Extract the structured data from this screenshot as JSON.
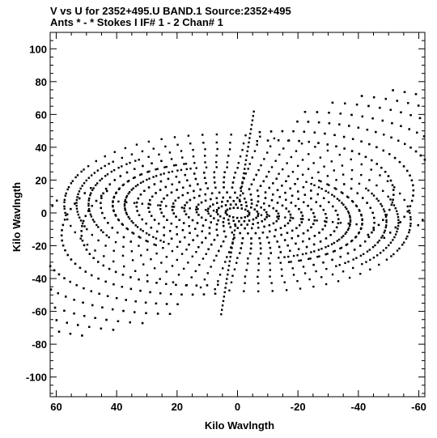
{
  "chart_data": {
    "type": "scatter",
    "title": "V vs U for 2352+495.U BAND.1   Source:2352+495",
    "subtitle": "Ants * - *     Stokes I   IF# 1 - 2   Chan# 1",
    "xlabel": "Kilo Wavlngth",
    "ylabel": "Kilo Wavlngth",
    "xlim": [
      62,
      -62
    ],
    "ylim": [
      -112,
      110
    ],
    "x_reversed": true,
    "x_ticks": [
      60,
      40,
      20,
      0,
      -20,
      -40,
      -60
    ],
    "y_ticks": [
      100,
      80,
      60,
      40,
      20,
      0,
      -20,
      -40,
      -60,
      -80,
      -100
    ],
    "x_tick_labels": [
      "60",
      "40",
      "20",
      "0",
      "-20",
      "-40",
      "-60"
    ],
    "y_tick_labels": [
      "100",
      "80",
      "60",
      "40",
      "20",
      "0",
      "-20",
      "-40",
      "-60",
      "-80",
      "-100"
    ],
    "grid": false,
    "legend": "none",
    "marker_color": "#000000",
    "tracks": [
      {
        "a": 4,
        "b": 3,
        "phi": 15,
        "t0": 0,
        "t1": 360,
        "n": 18
      },
      {
        "a": 7,
        "b": 5,
        "phi": 15,
        "t0": 0,
        "t1": 360,
        "n": 24
      },
      {
        "a": 10,
        "b": 7,
        "phi": 15,
        "t0": 0,
        "t1": 360,
        "n": 30
      },
      {
        "a": 14,
        "b": 9,
        "phi": 15,
        "t0": 0,
        "t1": 360,
        "n": 36
      },
      {
        "a": 18,
        "b": 12,
        "phi": 15,
        "t0": 0,
        "t1": 360,
        "n": 42
      },
      {
        "a": 22,
        "b": 15,
        "phi": 15,
        "t0": 0,
        "t1": 360,
        "n": 48
      },
      {
        "a": 26,
        "b": 18,
        "phi": 15,
        "t0": 0,
        "t1": 360,
        "n": 52
      },
      {
        "a": 30,
        "b": 21,
        "phi": 15,
        "t0": 0,
        "t1": 360,
        "n": 56
      },
      {
        "a": 34,
        "b": 24,
        "phi": 15,
        "t0": 0,
        "t1": 360,
        "n": 60
      },
      {
        "a": 38,
        "b": 27,
        "phi": 15,
        "t0": -60,
        "t1": 240,
        "n": 56
      },
      {
        "a": 42,
        "b": 30,
        "phi": 15,
        "t0": -60,
        "t1": 240,
        "n": 58
      },
      {
        "a": 46,
        "b": 34,
        "phi": 15,
        "t0": -50,
        "t1": 230,
        "n": 56
      },
      {
        "a": 50,
        "b": 38,
        "phi": 15,
        "t0": -40,
        "t1": 220,
        "n": 54
      },
      {
        "a": 54,
        "b": 42,
        "phi": 15,
        "t0": -30,
        "t1": 210,
        "n": 50
      },
      {
        "a": 58,
        "b": 47,
        "phi": 15,
        "t0": -20,
        "t1": 200,
        "n": 46
      },
      {
        "a": 40,
        "b": 55,
        "phi": 60,
        "t0": 30,
        "t1": 150,
        "n": 30
      },
      {
        "a": 40,
        "b": 55,
        "phi": 60,
        "t0": 210,
        "t1": 330,
        "n": 30
      },
      {
        "a": 45,
        "b": 62,
        "phi": 60,
        "t0": 30,
        "t1": 150,
        "n": 32
      },
      {
        "a": 45,
        "b": 62,
        "phi": 60,
        "t0": 210,
        "t1": 330,
        "n": 32
      },
      {
        "a": 50,
        "b": 70,
        "phi": 60,
        "t0": 40,
        "t1": 140,
        "n": 30
      },
      {
        "a": 50,
        "b": 70,
        "phi": 60,
        "t0": 220,
        "t1": 320,
        "n": 30
      },
      {
        "a": 55,
        "b": 78,
        "phi": 60,
        "t0": 40,
        "t1": 140,
        "n": 30
      },
      {
        "a": 55,
        "b": 78,
        "phi": 60,
        "t0": 220,
        "t1": 320,
        "n": 30
      },
      {
        "a": 60,
        "b": 86,
        "phi": 60,
        "t0": 45,
        "t1": 135,
        "n": 28
      },
      {
        "a": 60,
        "b": 86,
        "phi": 60,
        "t0": 225,
        "t1": 315,
        "n": 28
      },
      {
        "a": 64,
        "b": 93,
        "phi": 60,
        "t0": 50,
        "t1": 130,
        "n": 26
      },
      {
        "a": 64,
        "b": 93,
        "phi": 60,
        "t0": 230,
        "t1": 310,
        "n": 26
      },
      {
        "a": 68,
        "b": 100,
        "phi": 60,
        "t0": 55,
        "t1": 125,
        "n": 24
      },
      {
        "a": 68,
        "b": 100,
        "phi": 60,
        "t0": 235,
        "t1": 305,
        "n": 24
      }
    ],
    "rays": [
      {
        "r0": 8,
        "r1": 62,
        "angle": 95,
        "n": 20
      },
      {
        "r0": 8,
        "r1": 62,
        "angle": 275,
        "n": 20
      },
      {
        "r0": 8,
        "r1": 40,
        "angle": 10,
        "n": 12
      },
      {
        "r0": 8,
        "r1": 40,
        "angle": 190,
        "n": 12
      }
    ]
  }
}
